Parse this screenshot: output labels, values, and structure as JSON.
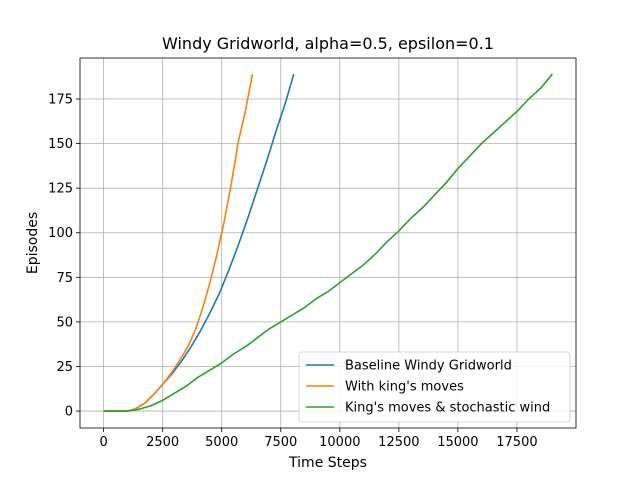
{
  "chart_data": {
    "type": "line",
    "title": "Windy Gridworld, alpha=0.5, epsilon=0.1",
    "xlabel": "Time Steps",
    "ylabel": "Episodes",
    "xlim": [
      -1000,
      20000
    ],
    "ylim": [
      -9.5,
      198
    ],
    "xticks": [
      0,
      2500,
      5000,
      7500,
      10000,
      12500,
      15000,
      17500
    ],
    "yticks": [
      0,
      25,
      50,
      75,
      100,
      125,
      150,
      175
    ],
    "xtick_labels": [
      "0",
      "2500",
      "5000",
      "7500",
      "10000",
      "12500",
      "15000",
      "17500"
    ],
    "ytick_labels": [
      "0",
      "25",
      "50",
      "75",
      "100",
      "125",
      "150",
      "175"
    ],
    "grid": true,
    "legend_position": "lower-right",
    "series": [
      {
        "name": "Baseline Windy Gridworld",
        "color": "#1f77b4",
        "x": [
          0,
          1000,
          1300,
          1700,
          2100,
          2500,
          2900,
          3300,
          3700,
          4100,
          4500,
          4900,
          5300,
          5700,
          6100,
          6500,
          6900,
          7300,
          7700,
          8050
        ],
        "y": [
          0,
          0,
          1,
          4,
          9,
          15,
          21,
          28,
          36,
          45,
          55,
          66,
          79,
          93,
          108,
          124,
          140,
          157,
          173,
          189
        ]
      },
      {
        "name": "With king's moves",
        "color": "#ff7f0e",
        "x": [
          0,
          1000,
          1300,
          1700,
          2100,
          2500,
          2900,
          3300,
          3600,
          3900,
          4200,
          4500,
          4800,
          5100,
          5400,
          5700,
          6000,
          6300
        ],
        "y": [
          0,
          0,
          1,
          4,
          9,
          15,
          22,
          30,
          37,
          46,
          58,
          72,
          88,
          106,
          127,
          151,
          168,
          189
        ]
      },
      {
        "name": "King's moves & stochastic wind",
        "color": "#2ca02c",
        "x": [
          0,
          1000,
          1500,
          2000,
          2500,
          3000,
          3500,
          4000,
          4500,
          5000,
          5500,
          6000,
          6500,
          7000,
          7500,
          8000,
          8500,
          9000,
          9500,
          10000,
          10500,
          11000,
          11500,
          12000,
          12500,
          13000,
          13500,
          14000,
          14500,
          15000,
          15500,
          16000,
          16500,
          17000,
          17500,
          18000,
          18500,
          19000
        ],
        "y": [
          0,
          0,
          1,
          3,
          6,
          10,
          14,
          19,
          23,
          27,
          32,
          36,
          41,
          46,
          50,
          54,
          58,
          63,
          67,
          72,
          77,
          82,
          88,
          95,
          101,
          108,
          114,
          121,
          128,
          136,
          143,
          150,
          156,
          162,
          168,
          175,
          181,
          189
        ]
      }
    ]
  }
}
